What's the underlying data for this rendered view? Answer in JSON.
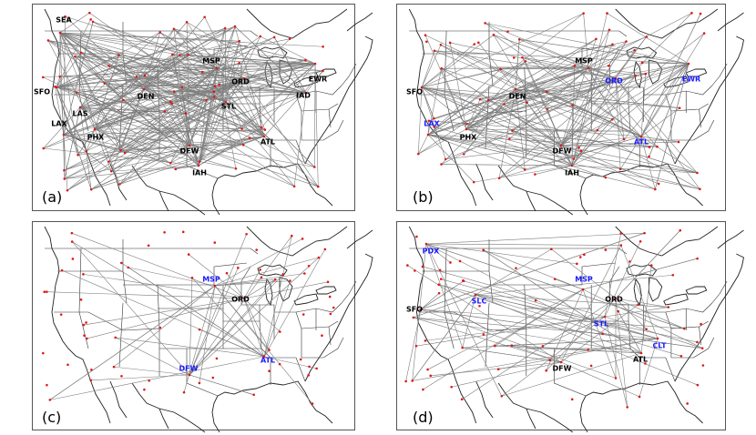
{
  "colors": {
    "route": "#7d7d7d",
    "airport": "#e0161a",
    "hub_black": "#000000",
    "hub_blue": "#1a1aff",
    "coastline": "#222222"
  },
  "panels": [
    {
      "label": "(a)",
      "hubs": [
        {
          "code": "SEA",
          "color": "black"
        },
        {
          "code": "MSP",
          "color": "black"
        },
        {
          "code": "ORD",
          "color": "black"
        },
        {
          "code": "EWR",
          "color": "black"
        },
        {
          "code": "SFO",
          "color": "black"
        },
        {
          "code": "DEN",
          "color": "black"
        },
        {
          "code": "IAD",
          "color": "black"
        },
        {
          "code": "LAS",
          "color": "black"
        },
        {
          "code": "STL",
          "color": "black"
        },
        {
          "code": "LAX",
          "color": "black"
        },
        {
          "code": "PHX",
          "color": "black"
        },
        {
          "code": "ATL",
          "color": "black"
        },
        {
          "code": "DFW",
          "color": "black"
        },
        {
          "code": "IAH",
          "color": "black"
        }
      ]
    },
    {
      "label": "(b)",
      "hubs": [
        {
          "code": "MSP",
          "color": "black"
        },
        {
          "code": "ORD",
          "color": "blue"
        },
        {
          "code": "EWR",
          "color": "blue"
        },
        {
          "code": "SFO",
          "color": "black"
        },
        {
          "code": "DEN",
          "color": "black"
        },
        {
          "code": "LAX",
          "color": "blue"
        },
        {
          "code": "PHX",
          "color": "black"
        },
        {
          "code": "ATL",
          "color": "blue"
        },
        {
          "code": "DFW",
          "color": "black"
        },
        {
          "code": "IAH",
          "color": "black"
        }
      ]
    },
    {
      "label": "(c)",
      "hubs": [
        {
          "code": "MSP",
          "color": "blue"
        },
        {
          "code": "ORD",
          "color": "black"
        },
        {
          "code": "DFW",
          "color": "blue"
        },
        {
          "code": "ATL",
          "color": "blue"
        }
      ]
    },
    {
      "label": "(d)",
      "hubs": [
        {
          "code": "PDX",
          "color": "blue"
        },
        {
          "code": "MSP",
          "color": "blue"
        },
        {
          "code": "SLC",
          "color": "blue"
        },
        {
          "code": "ORD",
          "color": "black"
        },
        {
          "code": "SFO",
          "color": "black"
        },
        {
          "code": "STL",
          "color": "blue"
        },
        {
          "code": "CLT",
          "color": "blue"
        },
        {
          "code": "ATL",
          "color": "black"
        },
        {
          "code": "DFW",
          "color": "black"
        }
      ]
    }
  ]
}
